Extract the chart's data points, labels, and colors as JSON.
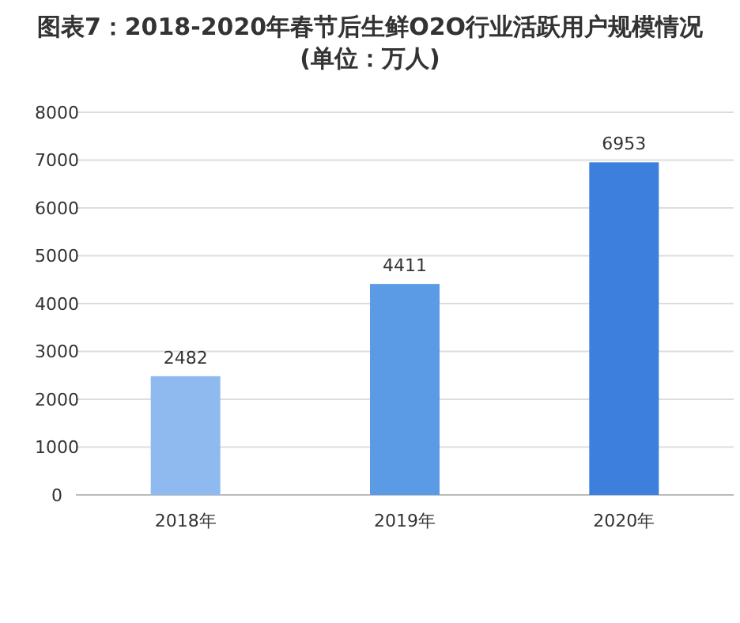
{
  "chart_data": {
    "type": "bar",
    "title": "图表7：2018-2020年春节后生鲜O2O行业活跃用户规模情况",
    "subtitle": "(单位：万人)",
    "categories": [
      "2018年",
      "2019年",
      "2020年"
    ],
    "values": [
      2482,
      4411,
      6953
    ],
    "colors": [
      "#8fbaf0",
      "#5b9be6",
      "#3d7fdd"
    ],
    "ylim": [
      0,
      8000
    ],
    "yticks": [
      0,
      1000,
      2000,
      3000,
      4000,
      5000,
      6000,
      7000,
      8000
    ],
    "grid": "y",
    "data_labels": true
  }
}
